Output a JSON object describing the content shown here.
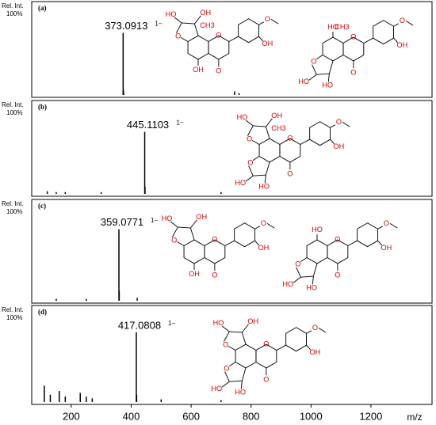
{
  "chart_data": [
    {
      "type": "bar",
      "panel_label": "(a)",
      "y_label": "Rel. Int.",
      "ylim": [
        0,
        100
      ],
      "yticks": [
        {
          "value": 100,
          "label": "100%"
        }
      ],
      "xlim": [
        68,
        1404
      ],
      "x": [
        373.0913,
        374.1,
        375.1,
        745.2,
        760.0
      ],
      "values": [
        70,
        6,
        2,
        4,
        2
      ],
      "color": "#000000",
      "annotation": {
        "x": 373.0913,
        "charge": "1−"
      },
      "structures": [
        {
          "ring_o": "O",
          "carbonyl": "O",
          "b_oh": "OH",
          "methoxy": "O",
          "a_bottom": "OH",
          "furan_o": "O",
          "furan_ho": "HO",
          "furan_oh": "OH",
          "methyl": "CH3"
        },
        {
          "ring_o": "O",
          "carbonyl": "O",
          "b_oh": "OH",
          "methoxy": "O",
          "a_top": "HO",
          "low_o": "O",
          "low_ho": "HO",
          "low_oh": "HO",
          "methyl": "CH3"
        }
      ]
    },
    {
      "type": "bar",
      "panel_label": "(b)",
      "y_label": "Rel. Int.",
      "ylim": [
        0,
        100
      ],
      "yticks": [
        {
          "value": 100,
          "label": "100%"
        }
      ],
      "xlim": [
        68,
        1404
      ],
      "x": [
        120,
        150,
        180,
        300,
        445.1103,
        446.1,
        700
      ],
      "values": [
        3,
        2,
        2,
        2,
        70,
        8,
        2
      ],
      "color": "#000000",
      "annotation": {
        "x": 445.1103,
        "charge": "1−"
      },
      "structures": [
        {
          "ring_o": "O",
          "carbonyl": "O",
          "b_oh": "OH",
          "methoxy": "O",
          "furan_o": "O",
          "furan_ho": "HO",
          "furan_oh": "OH",
          "methyl": "CH3",
          "low_o": "O",
          "low_ho": "HO",
          "low_oh": "HO"
        }
      ]
    },
    {
      "type": "bar",
      "panel_label": "(c)",
      "y_label": "Rel. Int.",
      "ylim": [
        0,
        100
      ],
      "yticks": [
        {
          "value": 100,
          "label": "100%"
        }
      ],
      "xlim": [
        68,
        1404
      ],
      "x": [
        150,
        250,
        359.0771,
        360.1,
        420
      ],
      "values": [
        2,
        2,
        74,
        10,
        3
      ],
      "color": "#000000",
      "annotation": {
        "x": 359.0771,
        "charge": "1−"
      },
      "structures": [
        {
          "ring_o": "O",
          "carbonyl": "O",
          "b_oh": "OH",
          "methoxy": "O",
          "a_bottom": "OH",
          "furan_o": "O",
          "furan_ho": "HO",
          "furan_oh": "OH"
        },
        {
          "ring_o": "O",
          "carbonyl": "O",
          "b_oh": "OH",
          "methoxy": "O",
          "a_top": "HO",
          "low_o": "O",
          "low_ho": "HO",
          "low_oh": "HO"
        }
      ]
    },
    {
      "type": "bar",
      "panel_label": "(d)",
      "y_label": "Rel. Int.",
      "ylim": [
        0,
        100
      ],
      "yticks": [
        {
          "value": 100,
          "label": "100%"
        }
      ],
      "xlim": [
        68,
        1404
      ],
      "x": [
        110,
        130,
        160,
        180,
        230,
        250,
        270,
        417.0808,
        418.1,
        500,
        700
      ],
      "values": [
        18,
        8,
        12,
        6,
        10,
        6,
        4,
        76,
        8,
        3,
        2
      ],
      "color": "#000000",
      "annotation": {
        "x": 417.0808,
        "charge": "1−"
      },
      "xticks": [
        200,
        400,
        600,
        800,
        1000,
        1200
      ],
      "xlabel": "m/z",
      "structures": [
        {
          "ring_o": "O",
          "carbonyl": "O",
          "b_oh": "OH",
          "methoxy": "O",
          "furan_o": "O",
          "furan_ho": "HO",
          "furan_oh": "OH",
          "low_o": "O",
          "low_ho": "HO",
          "low_oh": "HO"
        }
      ]
    }
  ]
}
